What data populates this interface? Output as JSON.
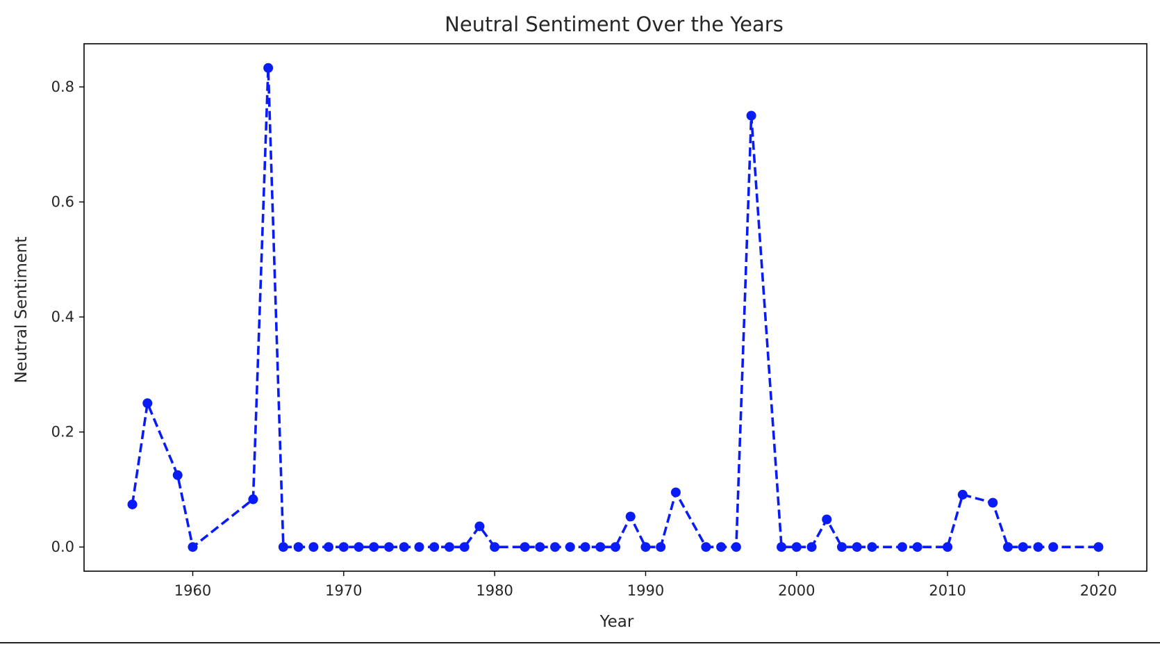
{
  "chart_data": {
    "type": "line",
    "title": "Neutral Sentiment Over the Years",
    "xlabel": "Year",
    "ylabel": "Neutral Sentiment",
    "xlim": [
      1952.8,
      2023.2
    ],
    "ylim": [
      -0.042,
      0.875
    ],
    "xticks": [
      1960,
      1970,
      1980,
      1990,
      2000,
      2010,
      2020
    ],
    "xtick_labels": [
      "1960",
      "1970",
      "1980",
      "1990",
      "2000",
      "2010",
      "2020"
    ],
    "yticks": [
      0.0,
      0.2,
      0.4,
      0.6,
      0.8
    ],
    "ytick_labels": [
      "0.0",
      "0.2",
      "0.4",
      "0.6",
      "0.8"
    ],
    "grid": false,
    "line_style": "dashed",
    "marker": "circle",
    "color": "#0a1cf5",
    "series": [
      {
        "x": [
          1956,
          1957,
          1959,
          1960,
          1964,
          1965,
          1966,
          1967,
          1968,
          1969,
          1970,
          1971,
          1972,
          1973,
          1974,
          1975,
          1976,
          1977,
          1978,
          1979,
          1980,
          1982,
          1983,
          1984,
          1985,
          1986,
          1987,
          1988,
          1989,
          1990,
          1991,
          1992,
          1994,
          1995,
          1996,
          1997,
          1999,
          2000,
          2001,
          2002,
          2003,
          2004,
          2005,
          2007,
          2008,
          2010,
          2011,
          2013,
          2014,
          2015,
          2016,
          2017,
          2020
        ],
        "y": [
          0.074,
          0.25,
          0.125,
          0.0,
          0.083,
          0.833,
          0.0,
          0.0,
          0.0,
          0.0,
          0.0,
          0.0,
          0.0,
          0.0,
          0.0,
          0.0,
          0.0,
          0.0,
          0.0,
          0.036,
          0.0,
          0.0,
          0.0,
          0.0,
          0.0,
          0.0,
          0.0,
          0.0,
          0.053,
          0.0,
          0.0,
          0.095,
          0.0,
          0.0,
          0.0,
          0.75,
          0.0,
          0.0,
          0.0,
          0.048,
          0.0,
          0.0,
          0.0,
          0.0,
          0.0,
          0.0,
          0.091,
          0.077,
          0.0,
          0.0,
          0.0,
          0.0,
          0.0
        ]
      }
    ]
  }
}
